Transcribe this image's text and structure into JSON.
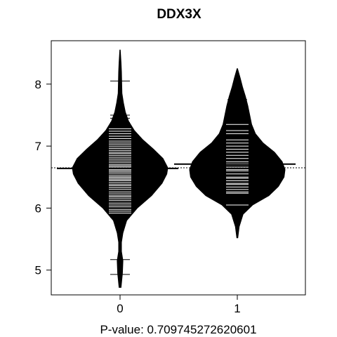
{
  "chart_data": {
    "type": "beanplot",
    "title": "DDX3X",
    "xlabel": "P-value: 0.709745272620601",
    "ylabel": "",
    "categories": [
      "0",
      "1"
    ],
    "ylim": [
      4.6,
      8.7
    ],
    "yticks": [
      5,
      6,
      7,
      8
    ],
    "overall_mean": 6.65,
    "grid": false,
    "legend": "none",
    "series": [
      {
        "category": "0",
        "group_mean": 6.64,
        "range": [
          4.72,
          8.55
        ],
        "density": [
          [
            4.72,
            0.02
          ],
          [
            4.95,
            0.05
          ],
          [
            5.15,
            0.06
          ],
          [
            5.3,
            0.03
          ],
          [
            5.45,
            0.03
          ],
          [
            5.6,
            0.06
          ],
          [
            5.8,
            0.14
          ],
          [
            6.0,
            0.36
          ],
          [
            6.2,
            0.66
          ],
          [
            6.4,
            0.88
          ],
          [
            6.55,
            0.98
          ],
          [
            6.65,
            1.0
          ],
          [
            6.8,
            0.9
          ],
          [
            6.95,
            0.7
          ],
          [
            7.1,
            0.48
          ],
          [
            7.25,
            0.3
          ],
          [
            7.4,
            0.18
          ],
          [
            7.55,
            0.11
          ],
          [
            7.7,
            0.07
          ],
          [
            7.85,
            0.04
          ],
          [
            8.0,
            0.035
          ],
          [
            8.2,
            0.03
          ],
          [
            8.35,
            0.02
          ],
          [
            8.55,
            0.005
          ]
        ],
        "observations": [
          4.93,
          5.17,
          5.85,
          5.88,
          5.92,
          5.95,
          5.98,
          6.02,
          6.05,
          6.08,
          6.12,
          6.15,
          6.18,
          6.2,
          6.23,
          6.26,
          6.3,
          6.33,
          6.36,
          6.38,
          6.41,
          6.44,
          6.46,
          6.48,
          6.5,
          6.52,
          6.55,
          6.58,
          6.6,
          6.62,
          6.64,
          6.66,
          6.68,
          6.7,
          6.73,
          6.76,
          6.79,
          6.82,
          6.85,
          6.88,
          6.9,
          6.93,
          6.96,
          6.99,
          7.02,
          7.05,
          7.08,
          7.12,
          7.16,
          7.2,
          7.24,
          7.28,
          7.33,
          7.38,
          7.45,
          7.5,
          8.05
        ]
      },
      {
        "category": "1",
        "group_mean": 6.71,
        "range": [
          5.52,
          8.25
        ],
        "density": [
          [
            5.52,
            0.01
          ],
          [
            5.7,
            0.04
          ],
          [
            5.9,
            0.12
          ],
          [
            6.05,
            0.32
          ],
          [
            6.2,
            0.66
          ],
          [
            6.35,
            0.86
          ],
          [
            6.5,
            0.98
          ],
          [
            6.62,
            1.0
          ],
          [
            6.75,
            0.94
          ],
          [
            6.9,
            0.78
          ],
          [
            7.05,
            0.54
          ],
          [
            7.2,
            0.38
          ],
          [
            7.35,
            0.3
          ],
          [
            7.5,
            0.26
          ],
          [
            7.65,
            0.22
          ],
          [
            7.8,
            0.17
          ],
          [
            7.95,
            0.11
          ],
          [
            8.1,
            0.06
          ],
          [
            8.25,
            0.005
          ]
        ],
        "observations": [
          5.96,
          6.05,
          6.24,
          6.26,
          6.3,
          6.34,
          6.38,
          6.4,
          6.44,
          6.48,
          6.5,
          6.55,
          6.6,
          6.62,
          6.66,
          6.7,
          6.72,
          6.75,
          6.8,
          6.85,
          6.9,
          6.95,
          7.0,
          7.05,
          7.1,
          7.2,
          7.25,
          7.35,
          7.5,
          7.62,
          7.65,
          7.75
        ]
      }
    ]
  }
}
